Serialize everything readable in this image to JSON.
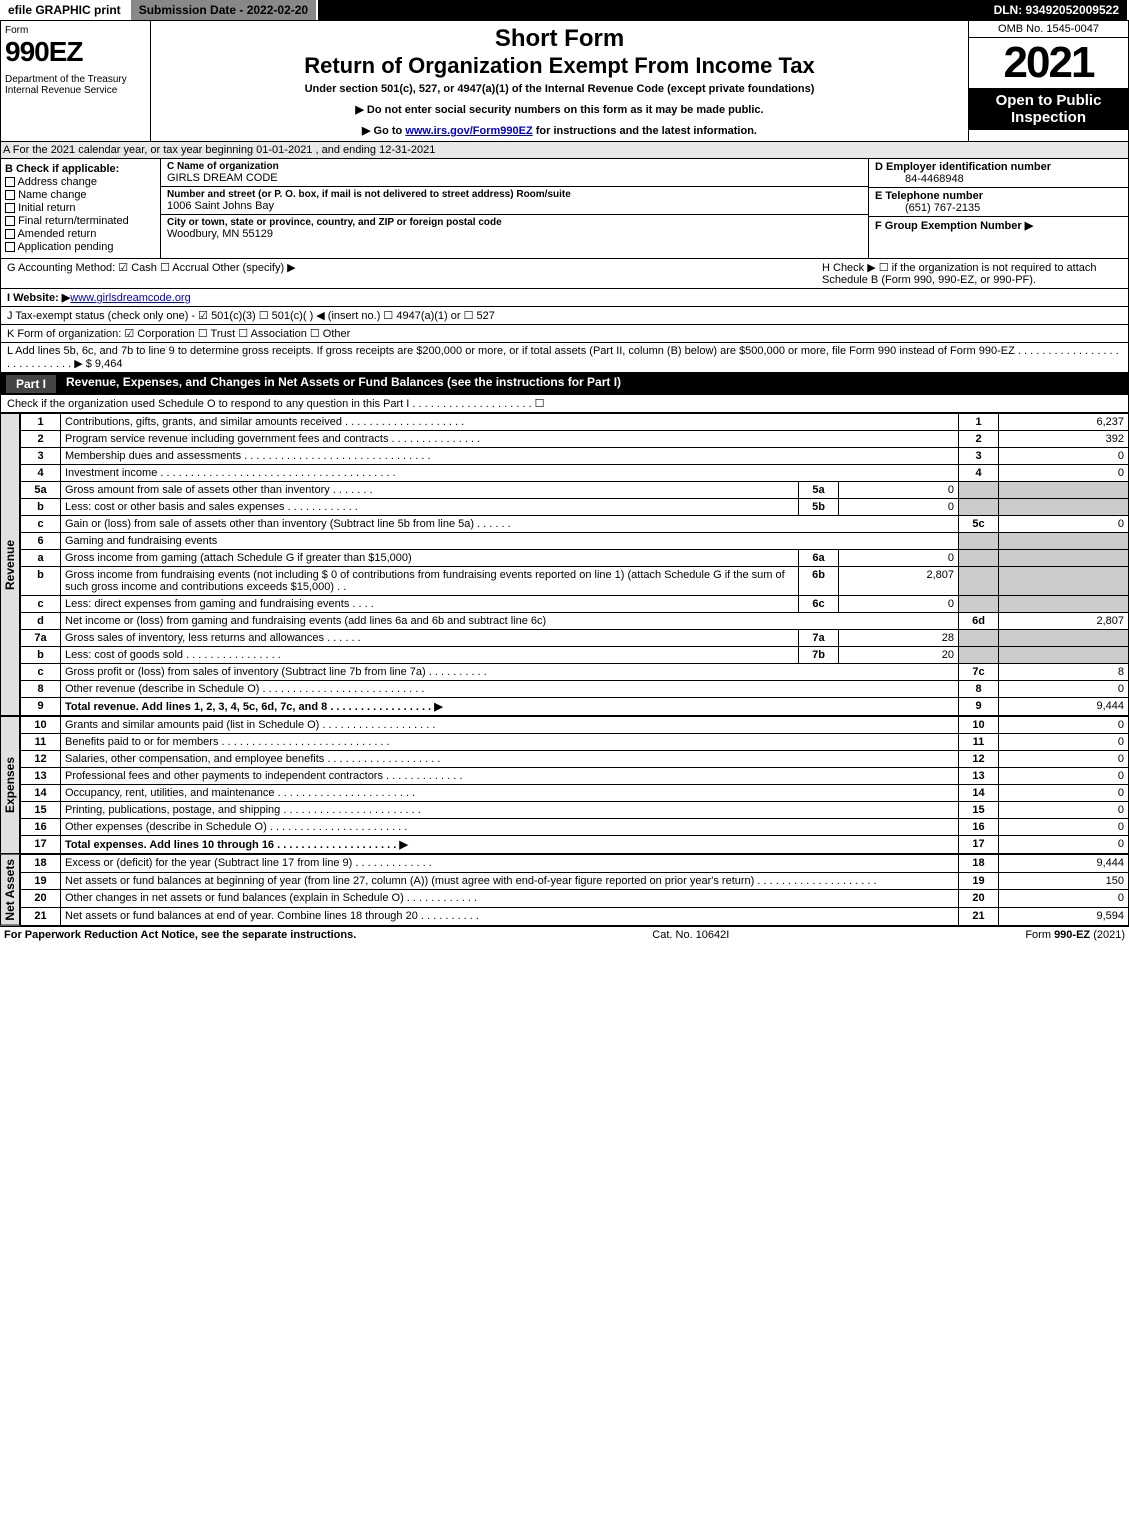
{
  "topbar": {
    "efile": "efile GRAPHIC print",
    "subdate": "Submission Date - 2022-02-20",
    "dln": "DLN: 93492052009522"
  },
  "header": {
    "form": "Form",
    "code": "990EZ",
    "dept": "Department of the Treasury\nInternal Revenue Service",
    "short": "Short Form",
    "return": "Return of Organization Exempt From Income Tax",
    "under": "Under section 501(c), 527, or 4947(a)(1) of the Internal Revenue Code (except private foundations)",
    "note1": "▶ Do not enter social security numbers on this form as it may be made public.",
    "note2": "▶ Go to www.irs.gov/Form990EZ for instructions and the latest information.",
    "omb": "OMB No. 1545-0047",
    "year": "2021",
    "open": "Open to Public Inspection"
  },
  "rowA": "A  For the 2021 calendar year, or tax year beginning 01-01-2021 , and ending 12-31-2021",
  "colB": {
    "title": "B  Check if applicable:",
    "items": [
      "Address change",
      "Name change",
      "Initial return",
      "Final return/terminated",
      "Amended return",
      "Application pending"
    ]
  },
  "colC": {
    "nameLabel": "C Name of organization",
    "name": "GIRLS DREAM CODE",
    "streetLabel": "Number and street (or P. O. box, if mail is not delivered to street address)      Room/suite",
    "street": "1006 Saint Johns Bay",
    "cityLabel": "City or town, state or province, country, and ZIP or foreign postal code",
    "city": "Woodbury, MN  55129"
  },
  "colD": {
    "einLabel": "D Employer identification number",
    "ein": "84-4468948",
    "telLabel": "E Telephone number",
    "tel": "(651) 767-2135",
    "grpLabel": "F Group Exemption Number  ▶"
  },
  "rowG": {
    "left": "G Accounting Method:  ☑ Cash  ☐ Accrual  Other (specify) ▶",
    "right": "H  Check ▶ ☐ if the organization is not required to attach Schedule B (Form 990, 990-EZ, or 990-PF)."
  },
  "rowI": "I Website: ▶ www.girlsdreamcode.org",
  "rowJ": "J Tax-exempt status (check only one) - ☑ 501(c)(3) ☐ 501(c)(  ) ◀ (insert no.) ☐ 4947(a)(1) or ☐ 527",
  "rowK": "K Form of organization:  ☑ Corporation  ☐ Trust  ☐ Association  ☐ Other",
  "rowL": "L Add lines 5b, 6c, and 7b to line 9 to determine gross receipts. If gross receipts are $200,000 or more, or if total assets (Part II, column (B) below) are $500,000 or more, file Form 990 instead of Form 990-EZ  .  .  .  .  .  .  .  .  .  .  .  .  .  .  .  .  .  .  .  .  .  .  .  .  .  .  .  .  ▶ $ 9,464",
  "partI": {
    "num": "Part I",
    "title": "Revenue, Expenses, and Changes in Net Assets or Fund Balances (see the instructions for Part I)",
    "sub": "Check if the organization used Schedule O to respond to any question in this Part I  .  .  .  .  .  .  .  .  .  .  .  .  .  .  .  .  .  .  .  .  ☐"
  },
  "sideTabs": {
    "revenue": "Revenue",
    "expenses": "Expenses",
    "netassets": "Net Assets"
  },
  "lines": [
    {
      "n": "1",
      "desc": "Contributions, gifts, grants, and similar amounts received  .  .  .  .  .  .  .  .  .  .  .  .  .  .  .  .  .  .  .  .",
      "ref": "1",
      "amt": "6,237"
    },
    {
      "n": "2",
      "desc": "Program service revenue including government fees and contracts  .  .  .  .  .  .  .  .  .  .  .  .  .  .  .",
      "ref": "2",
      "amt": "392"
    },
    {
      "n": "3",
      "desc": "Membership dues and assessments  .  .  .  .  .  .  .  .  .  .  .  .  .  .  .  .  .  .  .  .  .  .  .  .  .  .  .  .  .  .  .",
      "ref": "3",
      "amt": "0"
    },
    {
      "n": "4",
      "desc": "Investment income  .  .  .  .  .  .  .  .  .  .  .  .  .  .  .  .  .  .  .  .  .  .  .  .  .  .  .  .  .  .  .  .  .  .  .  .  .  .  .",
      "ref": "4",
      "amt": "0"
    },
    {
      "n": "5a",
      "desc": "Gross amount from sale of assets other than inventory  .  .  .  .  .  .  .",
      "sn": "5a",
      "samt": "0",
      "grey": true
    },
    {
      "n": "b",
      "desc": "Less: cost or other basis and sales expenses  .  .  .  .  .  .  .  .  .  .  .  .",
      "sn": "5b",
      "samt": "0",
      "grey": true
    },
    {
      "n": "c",
      "desc": "Gain or (loss) from sale of assets other than inventory (Subtract line 5b from line 5a)  .  .  .  .  .  .",
      "ref": "5c",
      "amt": "0"
    },
    {
      "n": "6",
      "desc": "Gaming and fundraising events",
      "grey": true
    },
    {
      "n": "a",
      "desc": "Gross income from gaming (attach Schedule G if greater than $15,000)",
      "sn": "6a",
      "samt": "0",
      "grey": true
    },
    {
      "n": "b",
      "desc": "Gross income from fundraising events (not including $ 0                        of contributions from fundraising events reported on line 1) (attach Schedule G if the sum of such gross income and contributions exceeds $15,000)    .  .",
      "sn": "6b",
      "samt": "2,807",
      "grey": true
    },
    {
      "n": "c",
      "desc": "Less: direct expenses from gaming and fundraising events    .  .  .  .",
      "sn": "6c",
      "samt": "0",
      "grey": true
    },
    {
      "n": "d",
      "desc": "Net income or (loss) from gaming and fundraising events (add lines 6a and 6b and subtract line 6c)",
      "ref": "6d",
      "amt": "2,807"
    },
    {
      "n": "7a",
      "desc": "Gross sales of inventory, less returns and allowances  .  .  .  .  .  .",
      "sn": "7a",
      "samt": "28",
      "grey": true
    },
    {
      "n": "b",
      "desc": "Less: cost of goods sold          .  .  .  .  .  .  .  .  .  .  .  .  .  .  .  .",
      "sn": "7b",
      "samt": "20",
      "grey": true
    },
    {
      "n": "c",
      "desc": "Gross profit or (loss) from sales of inventory (Subtract line 7b from line 7a)  .  .  .  .  .  .  .  .  .  .",
      "ref": "7c",
      "amt": "8"
    },
    {
      "n": "8",
      "desc": "Other revenue (describe in Schedule O)  .  .  .  .  .  .  .  .  .  .  .  .  .  .  .  .  .  .  .  .  .  .  .  .  .  .  .",
      "ref": "8",
      "amt": "0"
    },
    {
      "n": "9",
      "desc": "Total revenue. Add lines 1, 2, 3, 4, 5c, 6d, 7c, and 8  .  .  .  .  .  .  .  .  .  .  .  .  .  .  .  .  .  ▶",
      "ref": "9",
      "amt": "9,444",
      "bold": true
    }
  ],
  "expenses": [
    {
      "n": "10",
      "desc": "Grants and similar amounts paid (list in Schedule O)  .  .  .  .  .  .  .  .  .  .  .  .  .  .  .  .  .  .  .",
      "ref": "10",
      "amt": "0"
    },
    {
      "n": "11",
      "desc": "Benefits paid to or for members   .  .  .  .  .  .  .  .  .  .  .  .  .  .  .  .  .  .  .  .  .  .  .  .  .  .  .  .",
      "ref": "11",
      "amt": "0"
    },
    {
      "n": "12",
      "desc": "Salaries, other compensation, and employee benefits  .  .  .  .  .  .  .  .  .  .  .  .  .  .  .  .  .  .  .",
      "ref": "12",
      "amt": "0"
    },
    {
      "n": "13",
      "desc": "Professional fees and other payments to independent contractors  .  .  .  .  .  .  .  .  .  .  .  .  .",
      "ref": "13",
      "amt": "0"
    },
    {
      "n": "14",
      "desc": "Occupancy, rent, utilities, and maintenance  .  .  .  .  .  .  .  .  .  .  .  .  .  .  .  .  .  .  .  .  .  .  .",
      "ref": "14",
      "amt": "0"
    },
    {
      "n": "15",
      "desc": "Printing, publications, postage, and shipping .  .  .  .  .  .  .  .  .  .  .  .  .  .  .  .  .  .  .  .  .  .  .",
      "ref": "15",
      "amt": "0"
    },
    {
      "n": "16",
      "desc": "Other expenses (describe in Schedule O)    .  .  .  .  .  .  .  .  .  .  .  .  .  .  .  .  .  .  .  .  .  .  .",
      "ref": "16",
      "amt": "0"
    },
    {
      "n": "17",
      "desc": "Total expenses. Add lines 10 through 16    .  .  .  .  .  .  .  .  .  .  .  .  .  .  .  .  .  .  .  .  ▶",
      "ref": "17",
      "amt": "0",
      "bold": true
    }
  ],
  "netassets": [
    {
      "n": "18",
      "desc": "Excess or (deficit) for the year (Subtract line 17 from line 9)       .  .  .  .  .  .  .  .  .  .  .  .  .",
      "ref": "18",
      "amt": "9,444"
    },
    {
      "n": "19",
      "desc": "Net assets or fund balances at beginning of year (from line 27, column (A)) (must agree with end-of-year figure reported on prior year's return)  .  .  .  .  .  .  .  .  .  .  .  .  .  .  .  .  .  .  .  .",
      "ref": "19",
      "amt": "150"
    },
    {
      "n": "20",
      "desc": "Other changes in net assets or fund balances (explain in Schedule O)  .  .  .  .  .  .  .  .  .  .  .  .",
      "ref": "20",
      "amt": "0"
    },
    {
      "n": "21",
      "desc": "Net assets or fund balances at end of year. Combine lines 18 through 20  .  .  .  .  .  .  .  .  .  .",
      "ref": "21",
      "amt": "9,594"
    }
  ],
  "footer": {
    "left": "For Paperwork Reduction Act Notice, see the separate instructions.",
    "mid": "Cat. No. 10642I",
    "right": "Form 990-EZ (2021)"
  }
}
